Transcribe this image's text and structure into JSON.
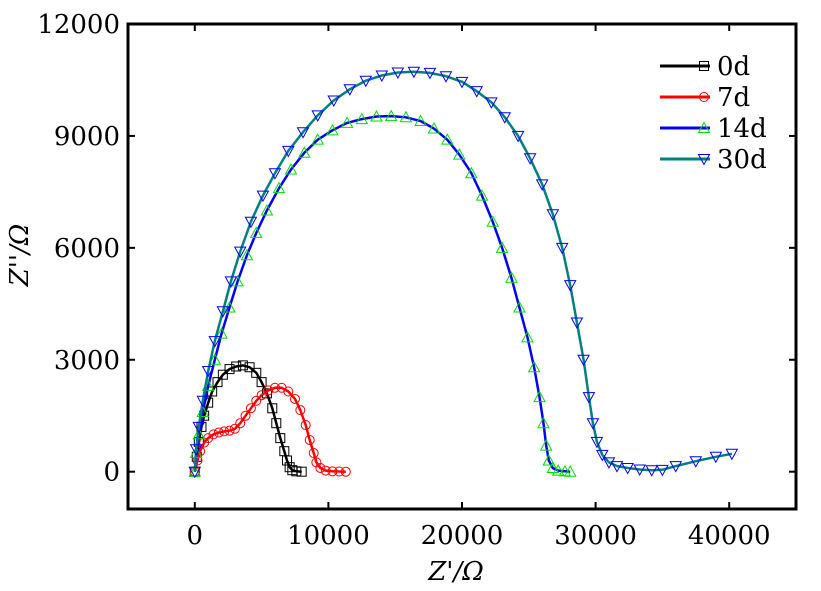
{
  "chart_data": {
    "type": "scatter",
    "xlabel": "Z'/Ω",
    "ylabel": "Z''/Ω",
    "xlim": [
      -5000,
      45000
    ],
    "ylim": [
      -1000,
      12000
    ],
    "xticks": [
      0,
      10000,
      20000,
      30000,
      40000
    ],
    "yticks": [
      0,
      3000,
      6000,
      9000,
      12000
    ],
    "xtick_labels": [
      "0",
      "10000",
      "20000",
      "30000",
      "40000"
    ],
    "ytick_labels": [
      "0",
      "3000",
      "6000",
      "9000",
      "12000"
    ],
    "grid": false,
    "legend_position": "top-right",
    "series": [
      {
        "name": "0d",
        "color": "#000000",
        "marker": "square",
        "points": [
          [
            0,
            0
          ],
          [
            150,
            400
          ],
          [
            300,
            800
          ],
          [
            500,
            1200
          ],
          [
            700,
            1500
          ],
          [
            1000,
            1850
          ],
          [
            1300,
            2150
          ],
          [
            1700,
            2400
          ],
          [
            2100,
            2600
          ],
          [
            2600,
            2750
          ],
          [
            3100,
            2820
          ],
          [
            3600,
            2850
          ],
          [
            4100,
            2800
          ],
          [
            4600,
            2650
          ],
          [
            5000,
            2400
          ],
          [
            5400,
            2100
          ],
          [
            5800,
            1700
          ],
          [
            6100,
            1300
          ],
          [
            6400,
            900
          ],
          [
            6700,
            550
          ],
          [
            6900,
            300
          ],
          [
            7100,
            120
          ],
          [
            7300,
            40
          ],
          [
            7600,
            10
          ],
          [
            8000,
            0
          ]
        ]
      },
      {
        "name": "7d",
        "color": "#ff0000",
        "marker": "circle",
        "points": [
          [
            0,
            0
          ],
          [
            200,
            300
          ],
          [
            400,
            550
          ],
          [
            700,
            780
          ],
          [
            1000,
            900
          ],
          [
            1400,
            1000
          ],
          [
            1800,
            1050
          ],
          [
            2200,
            1080
          ],
          [
            2600,
            1100
          ],
          [
            3000,
            1150
          ],
          [
            3400,
            1300
          ],
          [
            3800,
            1500
          ],
          [
            4200,
            1700
          ],
          [
            4600,
            1900
          ],
          [
            5000,
            2050
          ],
          [
            5500,
            2180
          ],
          [
            6000,
            2250
          ],
          [
            6500,
            2250
          ],
          [
            7000,
            2150
          ],
          [
            7500,
            1950
          ],
          [
            7900,
            1650
          ],
          [
            8300,
            1250
          ],
          [
            8600,
            850
          ],
          [
            8900,
            500
          ],
          [
            9100,
            250
          ],
          [
            9400,
            100
          ],
          [
            9800,
            30
          ],
          [
            10300,
            10
          ],
          [
            10800,
            5
          ],
          [
            11300,
            0
          ]
        ]
      },
      {
        "name": "14d",
        "color": "#0000ff",
        "marker_color": "#00dd00",
        "marker": "triangle-up",
        "points": [
          [
            0,
            0
          ],
          [
            100,
            500
          ],
          [
            300,
            1000
          ],
          [
            600,
            1600
          ],
          [
            1000,
            2300
          ],
          [
            1500,
            3000
          ],
          [
            2000,
            3700
          ],
          [
            2600,
            4400
          ],
          [
            3200,
            5100
          ],
          [
            3900,
            5800
          ],
          [
            4600,
            6400
          ],
          [
            5400,
            7000
          ],
          [
            6300,
            7600
          ],
          [
            7200,
            8100
          ],
          [
            8200,
            8550
          ],
          [
            9200,
            8900
          ],
          [
            10300,
            9150
          ],
          [
            11400,
            9350
          ],
          [
            12500,
            9450
          ],
          [
            13600,
            9520
          ],
          [
            14700,
            9530
          ],
          [
            15800,
            9500
          ],
          [
            16900,
            9400
          ],
          [
            17900,
            9200
          ],
          [
            18900,
            8900
          ],
          [
            19800,
            8500
          ],
          [
            20700,
            8000
          ],
          [
            21500,
            7400
          ],
          [
            22300,
            6700
          ],
          [
            23000,
            6000
          ],
          [
            23700,
            5200
          ],
          [
            24300,
            4400
          ],
          [
            24900,
            3600
          ],
          [
            25400,
            2800
          ],
          [
            25800,
            2000
          ],
          [
            26100,
            1300
          ],
          [
            26300,
            700
          ],
          [
            26500,
            300
          ],
          [
            26800,
            100
          ],
          [
            27200,
            30
          ],
          [
            27700,
            10
          ],
          [
            28100,
            0
          ]
        ]
      },
      {
        "name": "30d",
        "color": "#008080",
        "marker_color": "#0000ff",
        "marker": "triangle-down",
        "points": [
          [
            0,
            0
          ],
          [
            100,
            600
          ],
          [
            300,
            1200
          ],
          [
            600,
            1900
          ],
          [
            1000,
            2700
          ],
          [
            1500,
            3500
          ],
          [
            2100,
            4300
          ],
          [
            2700,
            5100
          ],
          [
            3400,
            5900
          ],
          [
            4200,
            6700
          ],
          [
            5100,
            7400
          ],
          [
            6000,
            8000
          ],
          [
            7000,
            8600
          ],
          [
            8100,
            9100
          ],
          [
            9200,
            9550
          ],
          [
            10400,
            9950
          ],
          [
            11600,
            10250
          ],
          [
            12800,
            10480
          ],
          [
            14000,
            10620
          ],
          [
            15200,
            10700
          ],
          [
            16400,
            10720
          ],
          [
            17600,
            10690
          ],
          [
            18800,
            10600
          ],
          [
            20000,
            10450
          ],
          [
            21100,
            10200
          ],
          [
            22200,
            9900
          ],
          [
            23200,
            9500
          ],
          [
            24200,
            9000
          ],
          [
            25100,
            8400
          ],
          [
            26000,
            7700
          ],
          [
            26800,
            6900
          ],
          [
            27500,
            6000
          ],
          [
            28100,
            5000
          ],
          [
            28600,
            4000
          ],
          [
            29100,
            3000
          ],
          [
            29500,
            2000
          ],
          [
            29800,
            1300
          ],
          [
            30100,
            800
          ],
          [
            30500,
            450
          ],
          [
            31000,
            250
          ],
          [
            31600,
            150
          ],
          [
            32400,
            100
          ],
          [
            33300,
            60
          ],
          [
            34200,
            40
          ],
          [
            35000,
            50
          ],
          [
            36000,
            150
          ],
          [
            37500,
            280
          ],
          [
            39000,
            400
          ],
          [
            40200,
            480
          ]
        ]
      }
    ]
  }
}
